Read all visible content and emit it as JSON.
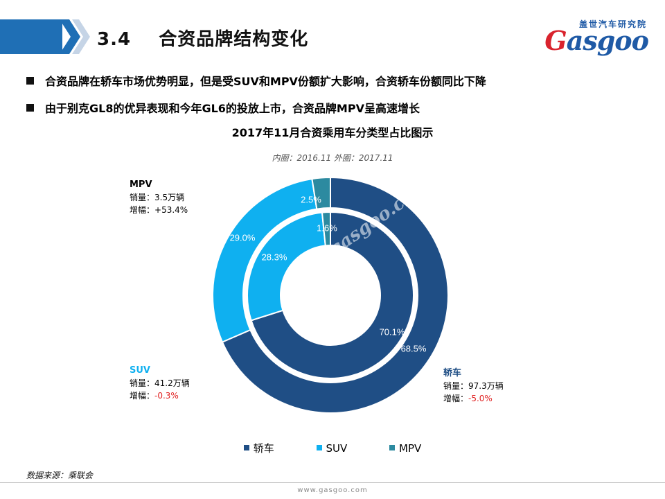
{
  "header": {
    "section": "3.4",
    "title": "合资品牌结构变化",
    "logo_cn": "盖世汽车研究院",
    "logo_en_prefix": "G",
    "logo_en_rest": "asgoo"
  },
  "bullets": [
    "合资品牌在轿车市场优势明显，但是受SUV和MPV份额扩大影响，合资轿车份额同比下降",
    "由于别克GL8的优异表现和今年GL6的投放上市，合资品牌MPV呈高速增长"
  ],
  "chart_data": {
    "type": "pie",
    "title": "2017年11月合资乘用车分类型占比图示",
    "subtitle": "内圈：2016.11 外圈：2017.11",
    "categories": [
      "轿车",
      "SUV",
      "MPV"
    ],
    "colors": [
      "#1f4e85",
      "#0fb0f0",
      "#2c8aa0"
    ],
    "series": [
      {
        "name": "2016.11",
        "ring": "inner",
        "values": [
          70.1,
          28.3,
          1.6
        ],
        "labels": [
          "70.1%",
          "28.3%",
          "1.6%"
        ]
      },
      {
        "name": "2017.11",
        "ring": "outer",
        "values": [
          68.5,
          29.0,
          2.5
        ],
        "labels": [
          "68.5%",
          "29.0%",
          "2.5%"
        ]
      }
    ],
    "legend_position": "bottom"
  },
  "annotations": {
    "mpv": {
      "name": "MPV",
      "sales": "销量：3.5万辆",
      "growth_label": "增幅：",
      "growth_value": "+53.4%"
    },
    "suv": {
      "name": "SUV",
      "sales": "销量：41.2万辆",
      "growth_label": "增幅：",
      "growth_value": "-0.3%"
    },
    "sedan": {
      "name": "轿车",
      "sales": "销量：97.3万辆",
      "growth_label": "增幅：",
      "growth_value": "-5.0%"
    }
  },
  "watermark": "auto.gasgoo.com",
  "source": "数据来源：乘联会",
  "footer": "www.gasgoo.com"
}
